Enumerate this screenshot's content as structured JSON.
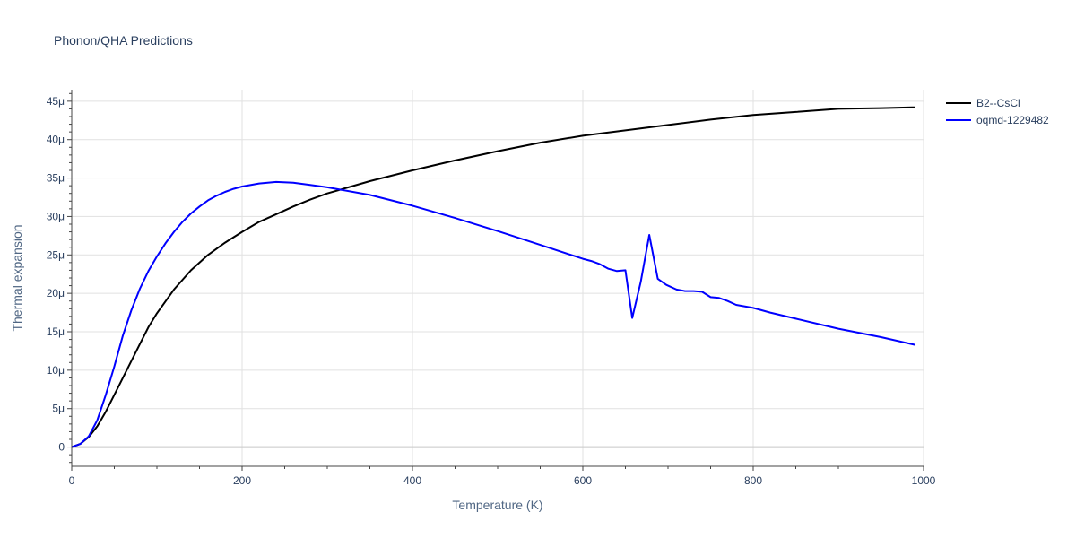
{
  "chart_data": {
    "type": "line",
    "title": "Phonon/QHA Predictions",
    "xlabel": "Temperature (K)",
    "ylabel": "Thermal expansion",
    "xlim": [
      0,
      1000
    ],
    "ylim": [
      -2.5e-06,
      4.65e-05
    ],
    "x_ticks": [
      0,
      200,
      400,
      600,
      800,
      1000
    ],
    "x_tick_labels": [
      "0",
      "200",
      "400",
      "600",
      "800",
      "1000"
    ],
    "y_ticks": [
      0,
      5e-06,
      1e-05,
      1.5e-05,
      2e-05,
      2.5e-05,
      3e-05,
      3.5e-05,
      4e-05,
      4.5e-05
    ],
    "y_tick_labels": [
      "0",
      "5μ",
      "10μ",
      "15μ",
      "20μ",
      "25μ",
      "30μ",
      "35μ",
      "40μ",
      "45μ"
    ],
    "grid": true,
    "legend_position": "top-right",
    "series": [
      {
        "name": "B2--CsCl",
        "color": "#000000",
        "x": [
          0,
          10,
          20,
          30,
          40,
          50,
          60,
          70,
          80,
          90,
          100,
          120,
          140,
          160,
          180,
          200,
          220,
          240,
          260,
          280,
          300,
          350,
          400,
          450,
          500,
          550,
          600,
          650,
          700,
          750,
          800,
          850,
          900,
          950,
          990
        ],
        "y": [
          0,
          4e-07,
          1.3e-06,
          2.7e-06,
          4.6e-06,
          6.8e-06,
          9e-06,
          1.12e-05,
          1.34e-05,
          1.56e-05,
          1.74e-05,
          2.05e-05,
          2.3e-05,
          2.5e-05,
          2.66e-05,
          2.8e-05,
          2.93e-05,
          3.03e-05,
          3.13e-05,
          3.22e-05,
          3.3e-05,
          3.46e-05,
          3.6e-05,
          3.73e-05,
          3.85e-05,
          3.96e-05,
          4.05e-05,
          4.12e-05,
          4.19e-05,
          4.26e-05,
          4.32e-05,
          4.36e-05,
          4.4e-05,
          4.41e-05,
          4.42e-05
        ]
      },
      {
        "name": "oqmd-1229482",
        "color": "#0000ff",
        "x": [
          0,
          10,
          20,
          30,
          40,
          50,
          60,
          70,
          80,
          90,
          100,
          110,
          120,
          130,
          140,
          150,
          160,
          170,
          180,
          190,
          200,
          220,
          240,
          260,
          280,
          300,
          350,
          400,
          450,
          500,
          550,
          600,
          610,
          620,
          630,
          640,
          650,
          658,
          668,
          678,
          688,
          698,
          710,
          720,
          730,
          740,
          750,
          760,
          770,
          780,
          800,
          820,
          850,
          900,
          950,
          990
        ],
        "y": [
          0,
          4e-07,
          1.4e-06,
          3.5e-06,
          6.8e-06,
          1.05e-05,
          1.45e-05,
          1.78e-05,
          2.06e-05,
          2.29e-05,
          2.48e-05,
          2.65e-05,
          2.8e-05,
          2.93e-05,
          3.04e-05,
          3.13e-05,
          3.21e-05,
          3.27e-05,
          3.32e-05,
          3.36e-05,
          3.39e-05,
          3.43e-05,
          3.45e-05,
          3.44e-05,
          3.41e-05,
          3.38e-05,
          3.28e-05,
          3.14e-05,
          2.98e-05,
          2.81e-05,
          2.63e-05,
          2.45e-05,
          2.42e-05,
          2.38e-05,
          2.32e-05,
          2.29e-05,
          2.3e-05,
          1.68e-05,
          2.15e-05,
          2.76e-05,
          2.19e-05,
          2.11e-05,
          2.05e-05,
          2.03e-05,
          2.03e-05,
          2.02e-05,
          1.95e-05,
          1.94e-05,
          1.9e-05,
          1.85e-05,
          1.81e-05,
          1.75e-05,
          1.67e-05,
          1.54e-05,
          1.43e-05,
          1.33e-05
        ]
      }
    ]
  }
}
